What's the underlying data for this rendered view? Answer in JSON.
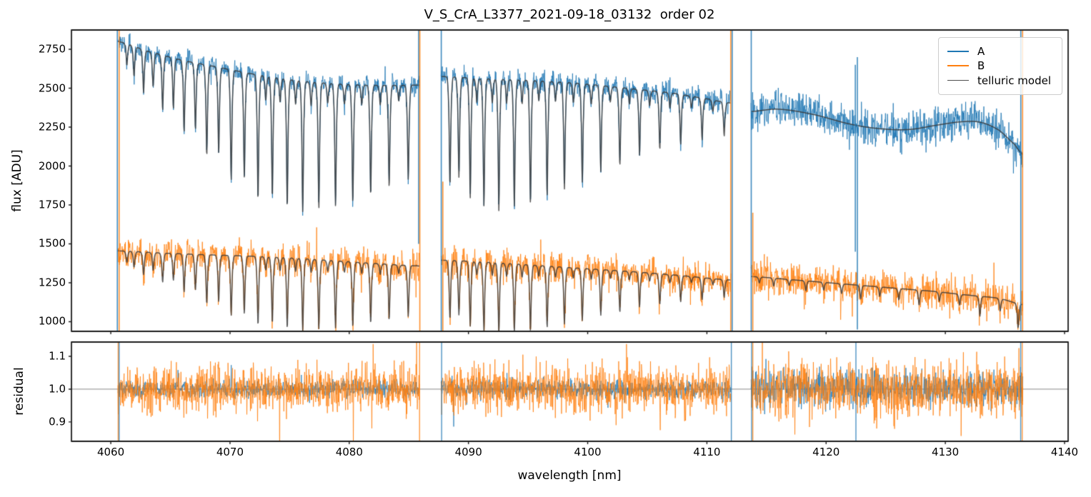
{
  "figure": {
    "title": "V_S_CrA_L3377_2021-09-18_03132  order 02",
    "xlabel": "wavelength [nm]",
    "ylabel_top": "flux [ADU]",
    "ylabel_bottom": "residual",
    "background": "#ffffff",
    "frame_color": "#1c1c1c"
  },
  "legend": {
    "items": [
      {
        "label": "A",
        "color": "#1f77b4",
        "thickness": 2.5
      },
      {
        "label": "B",
        "color": "#ff7f0e",
        "thickness": 2.5
      },
      {
        "label": "telluric model",
        "color": "#4d4d4d",
        "thickness": 1.5
      }
    ]
  },
  "chart_data": [
    {
      "type": "line",
      "panel": "flux",
      "title": "V_S_CrA_L3377_2021-09-18_03132  order 02",
      "ylabel": "flux [ADU]",
      "xlim": [
        4056.7,
        4140.3
      ],
      "ylim": [
        938,
        2874
      ],
      "xticks": [
        4060,
        4070,
        4080,
        4090,
        4100,
        4110,
        4120,
        4130,
        4140
      ],
      "yticks": [
        1000,
        1250,
        1500,
        1750,
        2000,
        2250,
        2500,
        2750
      ],
      "grid": false,
      "legend_position": "upper right",
      "series_colors": {
        "A": "#1f77b4",
        "B": "#ff7f0e",
        "telluric": "#3a3a3a"
      },
      "segments": [
        {
          "range": [
            4060.6,
            4085.9
          ],
          "A_continuum": [
            [
              4060.6,
              2800
            ],
            [
              4063,
              2740
            ],
            [
              4066,
              2680
            ],
            [
              4069,
              2635
            ],
            [
              4072,
              2590
            ],
            [
              4075,
              2555
            ],
            [
              4078,
              2532
            ],
            [
              4081,
              2520
            ],
            [
              4084,
              2518
            ],
            [
              4085.9,
              2520
            ]
          ],
          "B_continuum": [
            [
              4060.6,
              1455
            ],
            [
              4064,
              1442
            ],
            [
              4068,
              1430
            ],
            [
              4072,
              1420
            ],
            [
              4076,
              1405
            ],
            [
              4080,
              1385
            ],
            [
              4083,
              1370
            ],
            [
              4085.9,
              1358
            ]
          ],
          "telluric_lines": [
            [
              4061.35,
              0.05
            ],
            [
              4061.95,
              0.07
            ],
            [
              4062.75,
              0.1
            ],
            [
              4063.55,
              0.08
            ],
            [
              4064.35,
              0.13
            ],
            [
              4065.25,
              0.12
            ],
            [
              4066.15,
              0.17
            ],
            [
              4067.1,
              0.16
            ],
            [
              4068.05,
              0.22
            ],
            [
              4069.05,
              0.21
            ],
            [
              4070.1,
              0.27
            ],
            [
              4071.2,
              0.26
            ],
            [
              4072.35,
              0.31
            ],
            [
              4073.55,
              0.3
            ],
            [
              4074.8,
              0.32
            ],
            [
              4076.1,
              0.33
            ],
            [
              4077.45,
              0.32
            ],
            [
              4078.85,
              0.31
            ],
            [
              4080.3,
              0.3
            ],
            [
              4081.8,
              0.28
            ],
            [
              4083.35,
              0.26
            ],
            [
              4084.95,
              0.24
            ],
            [
              4073.0,
              0.06
            ],
            [
              4074.2,
              0.06
            ],
            [
              4075.5,
              0.06
            ],
            [
              4076.8,
              0.06
            ],
            [
              4078.2,
              0.05
            ],
            [
              4079.6,
              0.05
            ],
            [
              4081.05,
              0.05
            ],
            [
              4082.6,
              0.05
            ],
            [
              4084.15,
              0.04
            ]
          ],
          "A_noise": 30,
          "B_noise": 45,
          "A_model": "telluric"
        },
        {
          "range": [
            4087.7,
            4112.0
          ],
          "A_continuum": [
            [
              4087.7,
              2575
            ],
            [
              4091,
              2562
            ],
            [
              4095,
              2550
            ],
            [
              4099,
              2532
            ],
            [
              4103,
              2502
            ],
            [
              4107,
              2470
            ],
            [
              4110,
              2432
            ],
            [
              4112,
              2405
            ]
          ],
          "B_continuum": [
            [
              4087.7,
              1395
            ],
            [
              4092,
              1380
            ],
            [
              4096,
              1360
            ],
            [
              4100,
              1340
            ],
            [
              4104,
              1320
            ],
            [
              4108,
              1295
            ],
            [
              4112,
              1268
            ]
          ],
          "telluric_lines": [
            [
              4088.45,
              0.27
            ],
            [
              4089.2,
              0.25
            ],
            [
              4090.15,
              0.3
            ],
            [
              4091.3,
              0.32
            ],
            [
              4092.55,
              0.33
            ],
            [
              4093.85,
              0.32
            ],
            [
              4095.2,
              0.31
            ],
            [
              4096.6,
              0.29
            ],
            [
              4098.05,
              0.27
            ],
            [
              4099.55,
              0.25
            ],
            [
              4101.1,
              0.22
            ],
            [
              4102.7,
              0.2
            ],
            [
              4104.35,
              0.17
            ],
            [
              4106.05,
              0.15
            ],
            [
              4107.8,
              0.13
            ],
            [
              4109.6,
              0.11
            ],
            [
              4111.45,
              0.09
            ],
            [
              4090.7,
              0.06
            ],
            [
              4092.0,
              0.06
            ],
            [
              4093.2,
              0.06
            ],
            [
              4094.5,
              0.06
            ],
            [
              4095.9,
              0.05
            ],
            [
              4097.3,
              0.05
            ],
            [
              4098.8,
              0.05
            ],
            [
              4100.3,
              0.05
            ],
            [
              4101.9,
              0.04
            ],
            [
              4103.5,
              0.04
            ],
            [
              4105.2,
              0.04
            ],
            [
              4106.9,
              0.04
            ],
            [
              4108.7,
              0.03
            ],
            [
              4110.5,
              0.03
            ]
          ],
          "A_noise": 32,
          "B_noise": 46,
          "A_model": "telluric"
        },
        {
          "range": [
            4113.7,
            4136.5
          ],
          "A_continuum": [
            [
              4113.7,
              2350
            ],
            [
              4116,
              2365
            ],
            [
              4119,
              2330
            ],
            [
              4122,
              2270
            ],
            [
              4124.5,
              2240
            ],
            [
              4127,
              2235
            ],
            [
              4129.5,
              2265
            ],
            [
              4131.5,
              2285
            ],
            [
              4133,
              2280
            ],
            [
              4134.5,
              2230
            ],
            [
              4135.8,
              2140
            ],
            [
              4136.5,
              2075
            ]
          ],
          "B_continuum": [
            [
              4113.7,
              1290
            ],
            [
              4117,
              1270
            ],
            [
              4121,
              1245
            ],
            [
              4125,
              1220
            ],
            [
              4129,
              1195
            ],
            [
              4132,
              1170
            ],
            [
              4134.5,
              1150
            ],
            [
              4136.5,
              1110
            ]
          ],
          "telluric_lines": [
            [
              4114.4,
              0.03
            ],
            [
              4115.6,
              0.04
            ],
            [
              4116.9,
              0.03
            ],
            [
              4118.3,
              0.05
            ],
            [
              4119.8,
              0.04
            ],
            [
              4121.3,
              0.05
            ],
            [
              4122.9,
              0.07
            ],
            [
              4124.5,
              0.05
            ],
            [
              4126.1,
              0.06
            ],
            [
              4127.8,
              0.08
            ],
            [
              4129.5,
              0.05
            ],
            [
              4131.2,
              0.06
            ],
            [
              4132.9,
              0.11
            ],
            [
              4134.6,
              0.07
            ],
            [
              4136.1,
              0.14
            ]
          ],
          "A_noise": 55,
          "B_noise": 50,
          "A_model": "smooth"
        }
      ],
      "spikes": [
        {
          "wl": 4060.55,
          "series": "A"
        },
        {
          "wl": 4060.7,
          "series": "B"
        },
        {
          "wl": 4085.82,
          "series": "A",
          "v0": 2874,
          "v1": 1500
        },
        {
          "wl": 4085.92,
          "series": "B"
        },
        {
          "wl": 4087.72,
          "series": "A"
        },
        {
          "wl": 4087.85,
          "series": "B",
          "v0": 1900,
          "v1": 938
        },
        {
          "wl": 4112.0,
          "series": "B"
        },
        {
          "wl": 4112.12,
          "series": "A"
        },
        {
          "wl": 4113.72,
          "series": "A"
        },
        {
          "wl": 4113.85,
          "series": "B",
          "v0": 1700,
          "v1": 938
        },
        {
          "wl": 4122.45,
          "series": "A",
          "v0": 2650,
          "v1": 1450
        },
        {
          "wl": 4122.62,
          "series": "A",
          "v0": 2700,
          "v1": 950
        },
        {
          "wl": 4136.33,
          "series": "A"
        },
        {
          "wl": 4136.48,
          "series": "B"
        }
      ]
    },
    {
      "type": "line",
      "panel": "residual",
      "ylabel": "residual",
      "xlim": [
        4056.7,
        4140.3
      ],
      "ylim": [
        0.841,
        1.1435
      ],
      "yticks": [
        0.9,
        1.0,
        1.1
      ],
      "hline": 1.0,
      "hline_color": "#888888",
      "A_sigma": [
        0.013,
        0.014,
        0.026
      ],
      "B_sigma": [
        0.035,
        0.037,
        0.042
      ],
      "spikes": [
        {
          "wl": 4060.62,
          "series": "B"
        },
        {
          "wl": 4060.7,
          "series": "A"
        },
        {
          "wl": 4085.9,
          "series": "B"
        },
        {
          "wl": 4087.75,
          "series": "A"
        },
        {
          "wl": 4112.05,
          "series": "A"
        },
        {
          "wl": 4113.75,
          "series": "A"
        },
        {
          "wl": 4113.85,
          "series": "B"
        },
        {
          "wl": 4122.5,
          "series": "A"
        },
        {
          "wl": 4136.32,
          "series": "A"
        },
        {
          "wl": 4136.45,
          "series": "B"
        }
      ]
    }
  ]
}
